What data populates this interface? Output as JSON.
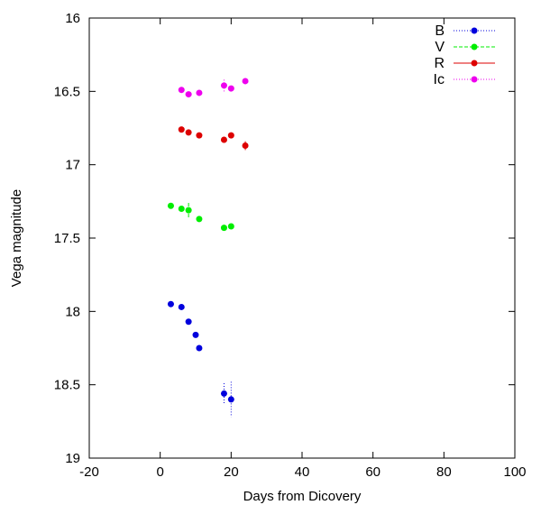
{
  "chart_data": {
    "type": "scatter",
    "title": "",
    "xlabel": "Days from Dicovery",
    "ylabel": "Vega magnitude",
    "xlim": [
      -20,
      100
    ],
    "ylim": [
      16,
      19
    ],
    "y_inverted": true,
    "grid": false,
    "legend_position": "top-right",
    "x_ticks": [
      -20,
      0,
      20,
      40,
      60,
      80,
      100
    ],
    "y_ticks": [
      16,
      16.5,
      17,
      17.5,
      18,
      18.5,
      19
    ],
    "series": [
      {
        "name": "B",
        "color": "#0000dd",
        "line_style": "dotted",
        "points": [
          {
            "x": 3,
            "y": 17.95,
            "err": 0.01
          },
          {
            "x": 6,
            "y": 17.97,
            "err": 0.01
          },
          {
            "x": 8,
            "y": 18.07,
            "err": 0.01
          },
          {
            "x": 10,
            "y": 18.16,
            "err": 0.01
          },
          {
            "x": 11,
            "y": 18.25,
            "err": 0.01
          },
          {
            "x": 18,
            "y": 18.56,
            "err": 0.07
          },
          {
            "x": 20,
            "y": 18.6,
            "err": 0.12
          }
        ]
      },
      {
        "name": "V",
        "color": "#00ee00",
        "line_style": "dashed",
        "points": [
          {
            "x": 3,
            "y": 17.28,
            "err": 0.01
          },
          {
            "x": 6,
            "y": 17.3,
            "err": 0.01
          },
          {
            "x": 8,
            "y": 17.31,
            "err": 0.05
          },
          {
            "x": 11,
            "y": 17.37,
            "err": 0.01
          },
          {
            "x": 18,
            "y": 17.43,
            "err": 0.01
          },
          {
            "x": 20,
            "y": 17.42,
            "err": 0.01
          }
        ]
      },
      {
        "name": "R",
        "color": "#dd0000",
        "line_style": "solid",
        "points": [
          {
            "x": 6,
            "y": 16.76,
            "err": 0.01
          },
          {
            "x": 8,
            "y": 16.78,
            "err": 0.01
          },
          {
            "x": 11,
            "y": 16.8,
            "err": 0.01
          },
          {
            "x": 18,
            "y": 16.83,
            "err": 0.01
          },
          {
            "x": 20,
            "y": 16.8,
            "err": 0.02
          },
          {
            "x": 24,
            "y": 16.87,
            "err": 0.03
          }
        ]
      },
      {
        "name": "Ic",
        "color": "#ee00ee",
        "line_style": "dotted",
        "points": [
          {
            "x": 6,
            "y": 16.49,
            "err": 0.01
          },
          {
            "x": 8,
            "y": 16.52,
            "err": 0.01
          },
          {
            "x": 11,
            "y": 16.51,
            "err": 0.01
          },
          {
            "x": 18,
            "y": 16.46,
            "err": 0.04
          },
          {
            "x": 20,
            "y": 16.48,
            "err": 0.01
          },
          {
            "x": 24,
            "y": 16.43,
            "err": 0.02
          }
        ]
      }
    ]
  }
}
